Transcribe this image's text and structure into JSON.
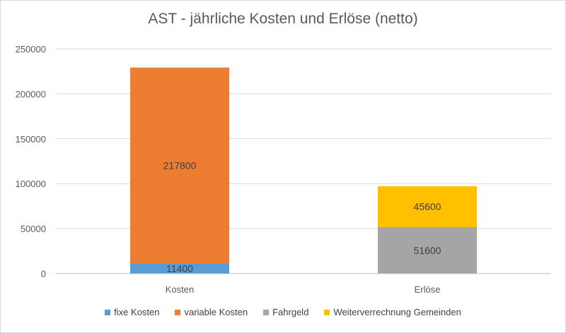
{
  "chart_data": {
    "type": "bar",
    "stacked": true,
    "title": "AST - jährliche Kosten und Erlöse (netto)",
    "categories": [
      "Kosten",
      "Erlöse"
    ],
    "series": [
      {
        "name": "fixe Kosten",
        "color": "#5b9bd5",
        "values": [
          11400,
          null
        ]
      },
      {
        "name": "variable Kosten",
        "color": "#ed7d31",
        "values": [
          217800,
          null
        ]
      },
      {
        "name": "Fahrgeld",
        "color": "#a5a5a5",
        "values": [
          null,
          51600
        ]
      },
      {
        "name": "Weiterverrechnung Gemeinden",
        "color": "#ffc000",
        "values": [
          null,
          45600
        ]
      }
    ],
    "ylim": [
      0,
      250000
    ],
    "yticks": [
      0,
      50000,
      100000,
      150000,
      200000,
      250000
    ],
    "grid": true,
    "legend_position": "bottom",
    "data_labels": true
  }
}
